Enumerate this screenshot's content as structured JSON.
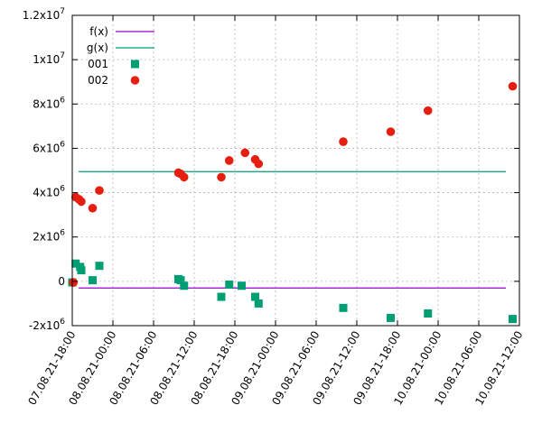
{
  "chart_data": {
    "type": "scatter",
    "x_axis": {
      "kind": "datetime",
      "range": [
        "2021-08-07T18:00",
        "2021-08-10T12:00"
      ],
      "ticks": [
        {
          "t": "2021-08-07T18:00",
          "label": "07.08.21-18:00"
        },
        {
          "t": "2021-08-08T00:00",
          "label": "08.08.21-00:00"
        },
        {
          "t": "2021-08-08T06:00",
          "label": "08.08.21-06:00"
        },
        {
          "t": "2021-08-08T12:00",
          "label": "08.08.21-12:00"
        },
        {
          "t": "2021-08-08T18:00",
          "label": "08.08.21-18:00"
        },
        {
          "t": "2021-08-09T00:00",
          "label": "09.08.21-00:00"
        },
        {
          "t": "2021-08-09T06:00",
          "label": "09.08.21-06:00"
        },
        {
          "t": "2021-08-09T12:00",
          "label": "09.08.21-12:00"
        },
        {
          "t": "2021-08-09T18:00",
          "label": "09.08.21-18:00"
        },
        {
          "t": "2021-08-10T00:00",
          "label": "10.08.21-00:00"
        },
        {
          "t": "2021-08-10T06:00",
          "label": "10.08.21-06:00"
        },
        {
          "t": "2021-08-10T12:00",
          "label": "10.08.21-12:00"
        }
      ]
    },
    "y_axis": {
      "range": [
        -2000000,
        12000000
      ],
      "ticks": [
        {
          "v": -2000000,
          "mant": "-2x10",
          "exp": "6"
        },
        {
          "v": 0,
          "mant": "0",
          "exp": ""
        },
        {
          "v": 2000000,
          "mant": "2x10",
          "exp": "6"
        },
        {
          "v": 4000000,
          "mant": "4x10",
          "exp": "6"
        },
        {
          "v": 6000000,
          "mant": "6x10",
          "exp": "6"
        },
        {
          "v": 8000000,
          "mant": "8x10",
          "exp": "6"
        },
        {
          "v": 10000000,
          "mant": "1x10",
          "exp": "7"
        },
        {
          "v": 12000000,
          "mant": "1.2x10",
          "exp": "7"
        }
      ]
    },
    "grid": true,
    "legend_position": "top-left",
    "lines": [
      {
        "name": "f(x)",
        "value": -300000,
        "color": "#9400d3"
      },
      {
        "name": "g(x)",
        "value": 4950000,
        "color": "#009e73"
      }
    ],
    "series": [
      {
        "name": "001",
        "marker": "square",
        "color": "#009e73",
        "points": [
          {
            "x": "2021-08-07T18:00",
            "y": -50000
          },
          {
            "x": "2021-08-07T18:30",
            "y": 800000
          },
          {
            "x": "2021-08-07T19:10",
            "y": 650000
          },
          {
            "x": "2021-08-07T19:20",
            "y": 500000
          },
          {
            "x": "2021-08-07T21:00",
            "y": 50000
          },
          {
            "x": "2021-08-07T22:00",
            "y": 700000
          },
          {
            "x": "2021-08-08T09:40",
            "y": 100000
          },
          {
            "x": "2021-08-08T10:00",
            "y": 50000
          },
          {
            "x": "2021-08-08T10:30",
            "y": -200000
          },
          {
            "x": "2021-08-08T16:00",
            "y": -700000
          },
          {
            "x": "2021-08-08T17:10",
            "y": -150000
          },
          {
            "x": "2021-08-08T19:00",
            "y": -200000
          },
          {
            "x": "2021-08-08T21:00",
            "y": -700000
          },
          {
            "x": "2021-08-08T21:30",
            "y": -1000000
          },
          {
            "x": "2021-08-09T10:00",
            "y": -1200000
          },
          {
            "x": "2021-08-09T17:00",
            "y": -1650000
          },
          {
            "x": "2021-08-09T22:30",
            "y": -1450000
          },
          {
            "x": "2021-08-10T11:00",
            "y": -1700000
          }
        ]
      },
      {
        "name": "002",
        "marker": "circle",
        "color": "#e51e10",
        "points": [
          {
            "x": "2021-08-07T18:10",
            "y": -50000
          },
          {
            "x": "2021-08-07T18:30",
            "y": 3800000
          },
          {
            "x": "2021-08-07T19:00",
            "y": 3700000
          },
          {
            "x": "2021-08-07T19:20",
            "y": 3600000
          },
          {
            "x": "2021-08-07T21:00",
            "y": 3300000
          },
          {
            "x": "2021-08-07T22:00",
            "y": 4100000
          },
          {
            "x": "2021-08-08T09:40",
            "y": 4900000
          },
          {
            "x": "2021-08-08T10:00",
            "y": 4850000
          },
          {
            "x": "2021-08-08T10:30",
            "y": 4700000
          },
          {
            "x": "2021-08-08T16:00",
            "y": 4700000
          },
          {
            "x": "2021-08-08T17:10",
            "y": 5450000
          },
          {
            "x": "2021-08-08T19:30",
            "y": 5800000
          },
          {
            "x": "2021-08-08T21:00",
            "y": 5500000
          },
          {
            "x": "2021-08-08T21:30",
            "y": 5300000
          },
          {
            "x": "2021-08-09T10:00",
            "y": 6300000
          },
          {
            "x": "2021-08-09T17:00",
            "y": 6750000
          },
          {
            "x": "2021-08-09T22:30",
            "y": 7700000
          },
          {
            "x": "2021-08-10T11:00",
            "y": 8800000
          }
        ]
      }
    ]
  }
}
